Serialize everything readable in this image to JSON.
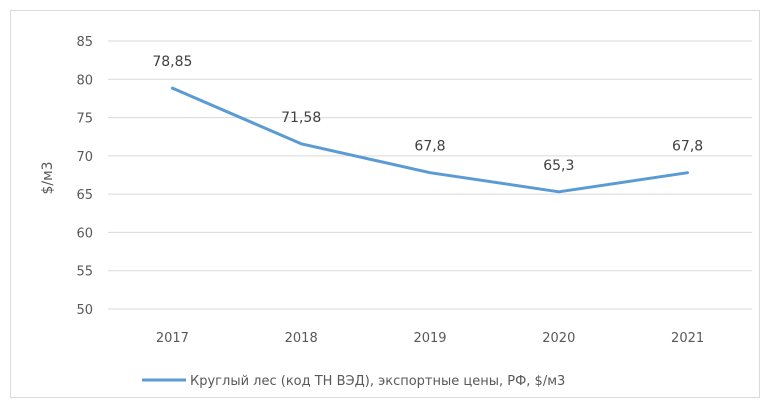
{
  "chart_data": {
    "type": "line",
    "categories": [
      "2017",
      "2018",
      "2019",
      "2020",
      "2021"
    ],
    "series": [
      {
        "name": "Круглый лес (код ТН ВЭД), экспортные цены, РФ, $/м3",
        "values": [
          78.85,
          71.58,
          67.8,
          65.3,
          67.8
        ],
        "labels": [
          "78,85",
          "71,58",
          "67,8",
          "65,3",
          "67,8"
        ],
        "color": "#5b9bd5"
      }
    ],
    "title": "",
    "xlabel": "",
    "ylabel": "$/м3",
    "ylim": [
      50,
      85
    ],
    "yticks": [
      "50",
      "55",
      "60",
      "65",
      "70",
      "75",
      "80",
      "85"
    ],
    "grid": true,
    "legend_position": "bottom"
  }
}
